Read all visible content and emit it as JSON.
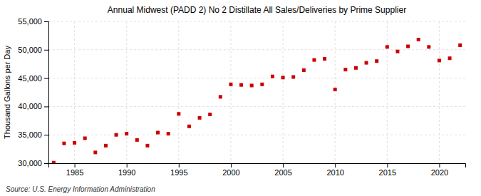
{
  "chart_data": {
    "type": "scatter",
    "title": "Annual Midwest (PADD 2) No 2 Distillate All Sales/Deliveries by Prime Supplier",
    "ylabel": "Thousand Gallons per Day",
    "annotations": [
      "Source: U.S. Energy Information Administration"
    ],
    "color": "#cc0000",
    "marker": "square",
    "grid": true,
    "xlim": [
      1982.5,
      2022.5
    ],
    "xticks": [
      1985,
      1990,
      1995,
      2000,
      2005,
      2010,
      2015,
      2020
    ],
    "ylim": [
      30000,
      55000
    ],
    "yticks": [
      {
        "value": 30000,
        "label": "30,000"
      },
      {
        "value": 35000,
        "label": "35,000"
      },
      {
        "value": 40000,
        "label": "40,000"
      },
      {
        "value": 45000,
        "label": "45,000"
      },
      {
        "value": 50000,
        "label": "50,000"
      },
      {
        "value": 55000,
        "label": "55,000"
      }
    ],
    "x": [
      1983,
      1984,
      1985,
      1986,
      1987,
      1988,
      1989,
      1990,
      1991,
      1992,
      1993,
      1994,
      1995,
      1996,
      1997,
      1998,
      1999,
      2000,
      2001,
      2002,
      2003,
      2004,
      2005,
      2006,
      2007,
      2008,
      2009,
      2010,
      2011,
      2012,
      2013,
      2014,
      2015,
      2016,
      2017,
      2018,
      2019,
      2020,
      2021,
      2022
    ],
    "values": [
      30100,
      33500,
      33600,
      34400,
      31900,
      33100,
      35000,
      35200,
      34100,
      33100,
      35400,
      35200,
      38700,
      36500,
      38000,
      38600,
      41700,
      43900,
      43800,
      43700,
      43900,
      45300,
      45100,
      45200,
      46400,
      48200,
      48400,
      43000,
      46500,
      46800,
      47700,
      48000,
      50500,
      49700,
      50600,
      51800,
      50500,
      48100,
      48500,
      50800
    ]
  }
}
